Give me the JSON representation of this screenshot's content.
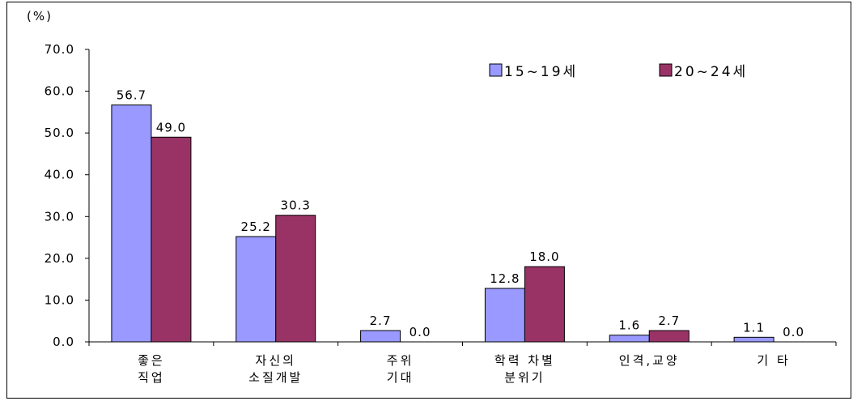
{
  "chart_data": {
    "type": "bar",
    "unit_label": "(%)",
    "categories": [
      [
        "좋은",
        "직업"
      ],
      [
        "자신의",
        "소질개발"
      ],
      [
        "주위",
        "기대"
      ],
      [
        "학력 차별",
        "분위기"
      ],
      [
        "인격,교양"
      ],
      [
        "기 타"
      ]
    ],
    "series": [
      {
        "name": "15~19세",
        "values": [
          56.7,
          25.2,
          2.7,
          12.8,
          1.6,
          1.1
        ],
        "color": "#9999FF"
      },
      {
        "name": "20~24세",
        "values": [
          49.0,
          30.3,
          0.0,
          18.0,
          2.7,
          0.0
        ],
        "color": "#993366"
      }
    ],
    "ylim": [
      0,
      70
    ],
    "yticks": [
      "0.0",
      "10.0",
      "20.0",
      "30.0",
      "40.0",
      "50.0",
      "60.0",
      "70.0"
    ],
    "legend": "top-right",
    "grid": false
  }
}
